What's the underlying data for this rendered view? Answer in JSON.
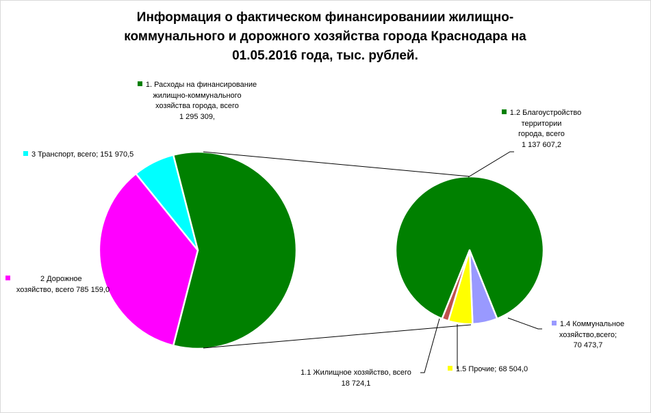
{
  "chart_data": {
    "type": "pie",
    "title": [
      "Информация о фактическом финансированиии жилищно-",
      "коммунального и дорожного хозяйства города Краснодара на",
      "01.05.2016  года, тыс. рублей."
    ],
    "main_pie": [
      {
        "id": "s1",
        "label_lines": [
          "1. Расходы на финансирование",
          "жилищно-коммунального",
          "хозяйства города, всего",
          "1 295 309,"
        ],
        "value": 1295309.0,
        "color": "#008000"
      },
      {
        "id": "s2",
        "label_lines": [
          "2 Дорожное",
          "хозяйство, всего 785 159,0"
        ],
        "value": 785159.0,
        "color": "#ff00ff"
      },
      {
        "id": "s3",
        "label_lines": [
          "3 Транспорт, всего; 151 970,5"
        ],
        "value": 151970.5,
        "color": "#00ffff"
      }
    ],
    "secondary_pie": [
      {
        "id": "t12",
        "label_lines": [
          "1.2 Благоустройство",
          "территории",
          "города, всего",
          "1 137 607,2"
        ],
        "value": 1137607.2,
        "color": "#008000"
      },
      {
        "id": "t14",
        "label_lines": [
          "1.4 Коммунальное",
          "хозяйство,всего;",
          "70 473,7"
        ],
        "value": 70473.7,
        "color": "#9999ff"
      },
      {
        "id": "t15",
        "label_lines": [
          "1.5 Прочие;  68 504,0"
        ],
        "value": 68504.0,
        "color": "#ffff00"
      },
      {
        "id": "t11",
        "label_lines": [
          "1.1 Жилищное  хозяйство, всего",
          "18 724,1"
        ],
        "value": 18724.1,
        "color": "#c0504d"
      }
    ]
  }
}
